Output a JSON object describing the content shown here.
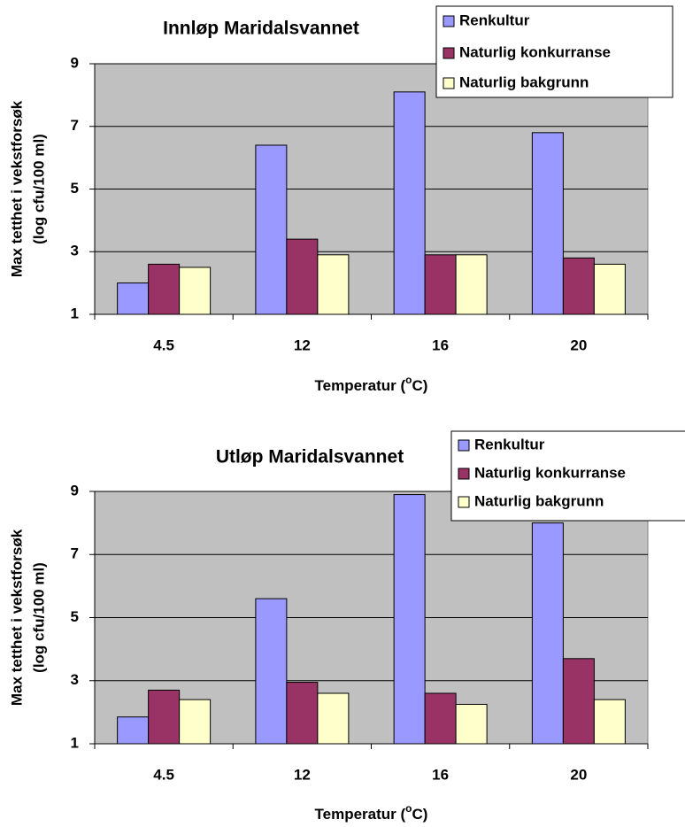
{
  "chart_data": [
    {
      "type": "bar",
      "title": "Innløp Maridalsvannet",
      "y_label": [
        "Max tetthet i vekstforsøk",
        "(log cfu/100 ml)"
      ],
      "x_label": [
        "Temperatur (",
        "o",
        "C)"
      ],
      "categories": [
        "4.5",
        "12",
        "16",
        "20"
      ],
      "series": [
        {
          "name": "Renkultur",
          "color": "#9999ff",
          "values": [
            2.0,
            6.4,
            8.1,
            6.8
          ]
        },
        {
          "name": "Naturlig konkurranse",
          "color": "#993366",
          "values": [
            2.6,
            3.4,
            2.9,
            2.8
          ]
        },
        {
          "name": "Naturlig bakgrunn",
          "color": "#ffffcc",
          "values": [
            2.5,
            2.9,
            2.9,
            2.6
          ]
        }
      ],
      "ylim": [
        1,
        9
      ],
      "yticks": [
        1,
        3,
        5,
        7,
        9
      ],
      "grid": true,
      "background": "#c0c0c0"
    },
    {
      "type": "bar",
      "title": "Utløp Maridalsvannet",
      "y_label": [
        "Max tetthet i vekstforsøk",
        "(log cfu/100 ml)"
      ],
      "x_label": [
        "Temperatur (",
        "o",
        "C)"
      ],
      "categories": [
        "4.5",
        "12",
        "16",
        "20"
      ],
      "series": [
        {
          "name": "Renkultur",
          "color": "#9999ff",
          "values": [
            1.85,
            5.6,
            8.9,
            8.0
          ]
        },
        {
          "name": "Naturlig konkurranse",
          "color": "#993366",
          "values": [
            2.7,
            2.95,
            2.6,
            3.7
          ]
        },
        {
          "name": "Naturlig bakgrunn",
          "color": "#ffffcc",
          "values": [
            2.4,
            2.6,
            2.25,
            2.4
          ]
        }
      ],
      "ylim": [
        1,
        9
      ],
      "yticks": [
        1,
        3,
        5,
        7,
        9
      ],
      "grid": true,
      "background": "#c0c0c0"
    }
  ]
}
